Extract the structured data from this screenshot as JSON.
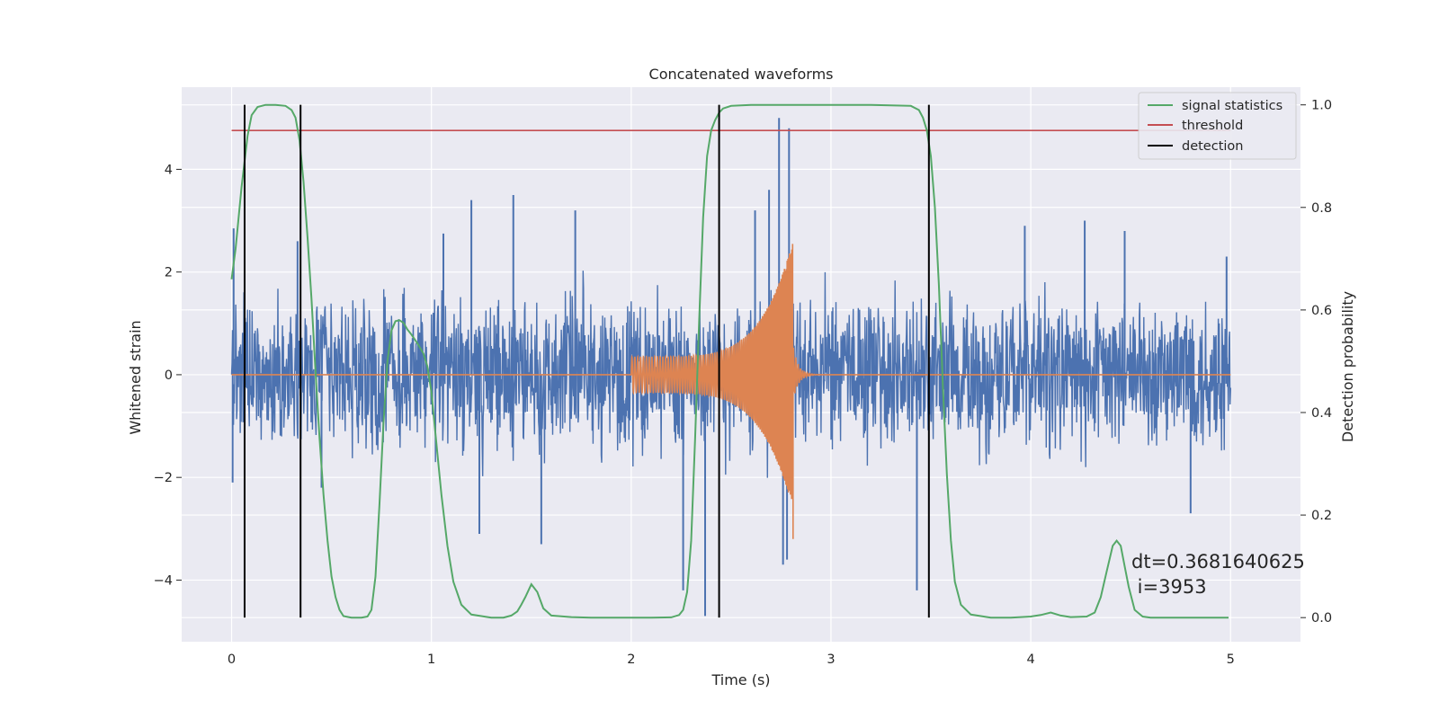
{
  "chart_data": {
    "type": "line",
    "title": "Concatenated waveforms",
    "xlabel": "Time (s)",
    "ylabel": "Whitened strain",
    "ylabel_right": "Detection probability",
    "xlim": [
      -0.25,
      5.35
    ],
    "ylim": [
      -5.2,
      5.6
    ],
    "ylim_right": [
      -0.047,
      1.0345
    ],
    "x_ticks": [
      0,
      1,
      2,
      3,
      4,
      5
    ],
    "y_ticks": [
      -4,
      -2,
      0,
      2,
      4
    ],
    "y_ticks_right": [
      0.0,
      0.2,
      0.4,
      0.6,
      0.8,
      1.0
    ],
    "grid": true,
    "legend_position": "top-right",
    "colors": {
      "background": "#eaeaf2",
      "grid": "#ffffff",
      "strain": "#4c72b0",
      "template": "#dd8452",
      "statistic": "#55a868",
      "threshold": "#c44e52",
      "detection": "#000000"
    },
    "series": [
      {
        "name": "",
        "role": "whitened strain noise",
        "color": "#4c72b0",
        "x_range": [
          0,
          5
        ],
        "envelope": [
          0.9,
          2.1
        ],
        "spikes": [
          {
            "x": 0.01,
            "y": 2.85
          },
          {
            "x": 0.005,
            "y": -2.1
          },
          {
            "x": 0.33,
            "y": 2.6
          },
          {
            "x": 0.45,
            "y": -2.2
          },
          {
            "x": 1.06,
            "y": 2.75
          },
          {
            "x": 1.2,
            "y": 3.4
          },
          {
            "x": 1.24,
            "y": -3.1
          },
          {
            "x": 1.41,
            "y": 3.5
          },
          {
            "x": 1.55,
            "y": -3.3
          },
          {
            "x": 1.72,
            "y": 3.2
          },
          {
            "x": 2.26,
            "y": -4.2
          },
          {
            "x": 2.37,
            "y": -4.7
          },
          {
            "x": 2.62,
            "y": 3.2
          },
          {
            "x": 2.69,
            "y": 3.6
          },
          {
            "x": 2.74,
            "y": 5.0
          },
          {
            "x": 2.76,
            "y": -3.7
          },
          {
            "x": 2.78,
            "y": -3.6
          },
          {
            "x": 2.79,
            "y": 4.8
          },
          {
            "x": 3.43,
            "y": -4.2
          },
          {
            "x": 3.97,
            "y": 2.9
          },
          {
            "x": 4.27,
            "y": 3.0
          },
          {
            "x": 4.47,
            "y": 2.8
          },
          {
            "x": 4.8,
            "y": -2.7
          },
          {
            "x": 4.98,
            "y": 2.3
          }
        ]
      },
      {
        "name": "",
        "role": "injected waveform",
        "color": "#dd8452",
        "x_range": [
          0,
          5
        ],
        "chirp_start": 2.0,
        "chirp_end": 2.81,
        "ringdown_end": 3.0,
        "amplitude_start": 0.35,
        "amplitude_peak": 2.6,
        "amplitude_min_at_peak": -3.2
      },
      {
        "name": "signal statistics",
        "axis": "right",
        "color": "#55a868",
        "x": [
          0,
          0.02,
          0.05,
          0.08,
          0.1,
          0.13,
          0.17,
          0.22,
          0.27,
          0.3,
          0.32,
          0.34,
          0.36,
          0.38,
          0.4,
          0.42,
          0.44,
          0.46,
          0.48,
          0.5,
          0.52,
          0.54,
          0.56,
          0.6,
          0.65,
          0.68,
          0.7,
          0.72,
          0.74,
          0.76,
          0.78,
          0.8,
          0.82,
          0.84,
          0.86,
          0.88,
          0.9,
          0.93,
          0.96,
          0.98,
          1.0,
          1.02,
          1.05,
          1.08,
          1.11,
          1.15,
          1.2,
          1.3,
          1.36,
          1.4,
          1.43,
          1.45,
          1.47,
          1.5,
          1.53,
          1.56,
          1.6,
          1.7,
          1.8,
          2.0,
          2.1,
          2.2,
          2.24,
          2.26,
          2.28,
          2.3,
          2.32,
          2.34,
          2.36,
          2.38,
          2.4,
          2.42,
          2.44,
          2.46,
          2.5,
          2.6,
          2.8,
          3.0,
          3.2,
          3.4,
          3.44,
          3.46,
          3.48,
          3.5,
          3.52,
          3.54,
          3.56,
          3.58,
          3.6,
          3.62,
          3.65,
          3.7,
          3.8,
          3.9,
          4.0,
          4.05,
          4.1,
          4.15,
          4.2,
          4.28,
          4.32,
          4.35,
          4.38,
          4.41,
          4.43,
          4.45,
          4.47,
          4.49,
          4.52,
          4.56,
          4.6,
          4.7,
          4.8,
          4.9,
          4.99
        ],
        "y": [
          0.66,
          0.72,
          0.84,
          0.94,
          0.98,
          0.996,
          1.0,
          1.0,
          0.998,
          0.99,
          0.975,
          0.93,
          0.85,
          0.74,
          0.62,
          0.48,
          0.35,
          0.24,
          0.15,
          0.08,
          0.04,
          0.015,
          0.003,
          0.0,
          0.0,
          0.002,
          0.015,
          0.08,
          0.22,
          0.38,
          0.5,
          0.56,
          0.578,
          0.58,
          0.575,
          0.562,
          0.552,
          0.535,
          0.515,
          0.49,
          0.44,
          0.36,
          0.24,
          0.14,
          0.07,
          0.025,
          0.006,
          0.0,
          0.0,
          0.004,
          0.012,
          0.025,
          0.04,
          0.065,
          0.05,
          0.018,
          0.004,
          0.001,
          0.0,
          0.0,
          0.0,
          0.0005,
          0.005,
          0.015,
          0.05,
          0.15,
          0.35,
          0.58,
          0.78,
          0.9,
          0.95,
          0.97,
          0.985,
          0.993,
          0.998,
          1.0,
          1.0,
          1.0,
          1.0,
          0.998,
          0.99,
          0.975,
          0.95,
          0.9,
          0.8,
          0.65,
          0.45,
          0.28,
          0.15,
          0.07,
          0.025,
          0.006,
          0.0,
          0.0,
          0.002,
          0.005,
          0.01,
          0.004,
          0.001,
          0.002,
          0.01,
          0.04,
          0.09,
          0.14,
          0.15,
          0.14,
          0.1,
          0.06,
          0.015,
          0.002,
          0.0,
          0.0,
          0.0,
          0.0,
          0.0
        ]
      },
      {
        "name": "threshold",
        "axis": "right",
        "color": "#c44e52",
        "x": [
          0,
          5
        ],
        "y": [
          0.95,
          0.95
        ]
      },
      {
        "name": "detection",
        "color": "#000000",
        "vlines": [
          0.065,
          0.345,
          2.44,
          3.49
        ]
      }
    ],
    "legend": [
      "signal statistics",
      "threshold",
      "detection"
    ],
    "annotation": {
      "line1": "dt=0.3681640625",
      "line2": " i=3953"
    }
  }
}
